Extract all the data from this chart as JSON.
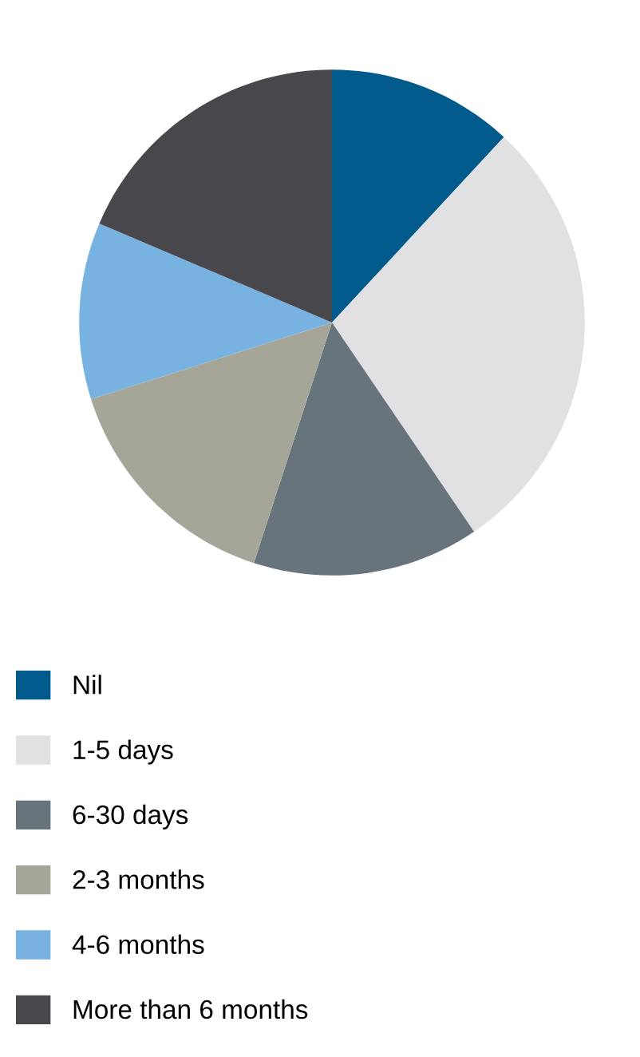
{
  "chart_data": {
    "type": "pie",
    "categories": [
      "Nil",
      "1-5 days",
      "6-30 days",
      "2-3 months",
      "4-6 months",
      "More than 6 months"
    ],
    "values": [
      11.9,
      28.6,
      14.5,
      15.1,
      11.3,
      18.6
    ],
    "colors": [
      "#005a8c",
      "#e1e1e3",
      "#68747c",
      "#a5a698",
      "#78b2e1",
      "#48484c"
    ],
    "legend": "bottom"
  }
}
